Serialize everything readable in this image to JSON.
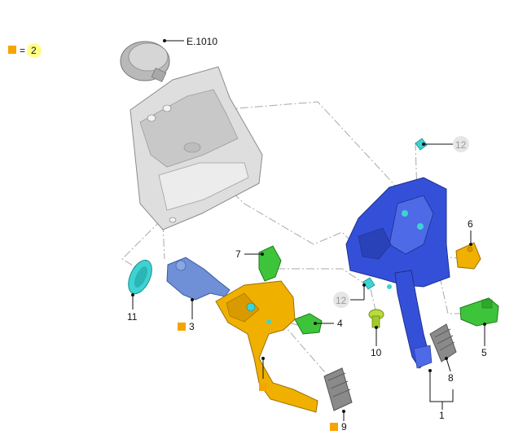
{
  "legend": {
    "equals": "=",
    "value": "2",
    "marker_color": "#f5a400",
    "value_highlight": "#ffff88"
  },
  "callouts": {
    "e1010": "E.1010",
    "c1": "1",
    "c3": "3",
    "c4": "4",
    "c5": "5",
    "c6": "6",
    "c7": "7",
    "c8": "8",
    "c9": "9",
    "c10": "10",
    "c11": "11",
    "c12a": "12",
    "c12b": "12"
  },
  "colors": {
    "blue_bracket": "#3550d8",
    "yellow_pedal": "#f0b000",
    "green_parts": "#3ec43a",
    "grey_panel": "#d9d9d9",
    "teal_clips": "#3dd3d3",
    "cylinder_blue": "#6f8fd6",
    "rubber_pad": "#8a8a8a"
  }
}
